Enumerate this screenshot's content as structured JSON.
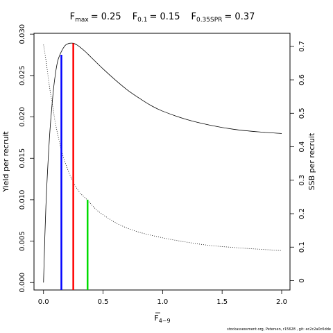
{
  "chart_data": {
    "type": "line",
    "title_parts": [
      {
        "label": "F",
        "sub": "max",
        "value": "= 0.25"
      },
      {
        "label": "F",
        "sub": "0.1",
        "value": "= 0.15"
      },
      {
        "label": "F",
        "sub": "0.35SPR",
        "value": "= 0.37"
      }
    ],
    "xlabel": "F",
    "xlabel_sub": "4−9",
    "ylabel_left": "Yield per recruit",
    "ylabel_right": "SSB per recruit",
    "xlim": [
      -0.08,
      2.07
    ],
    "ylim_left": [
      -0.0009,
      0.0301
    ],
    "ylim_right": [
      -0.028,
      0.739
    ],
    "x_ticks": [
      {
        "value": 0,
        "label": "0.0"
      },
      {
        "value": 0.5,
        "label": "0.5"
      },
      {
        "value": 1.0,
        "label": "1.0"
      },
      {
        "value": 1.5,
        "label": "1.5"
      },
      {
        "value": 2.0,
        "label": "2.0"
      }
    ],
    "y_left_ticks": [
      {
        "value": 0,
        "label": "0.000"
      },
      {
        "value": 0.005,
        "label": "0.005"
      },
      {
        "value": 0.01,
        "label": "0.010"
      },
      {
        "value": 0.015,
        "label": "0.015"
      },
      {
        "value": 0.02,
        "label": "0.020"
      },
      {
        "value": 0.025,
        "label": "0.025"
      },
      {
        "value": 0.03,
        "label": "0.030"
      }
    ],
    "y_right_ticks": [
      {
        "value": 0,
        "label": "0"
      },
      {
        "value": 0.1,
        "label": "0.1"
      },
      {
        "value": 0.2,
        "label": "0.2"
      },
      {
        "value": 0.3,
        "label": "0.3"
      },
      {
        "value": 0.4,
        "label": "0.4"
      },
      {
        "value": 0.5,
        "label": "0.5"
      },
      {
        "value": 0.6,
        "label": "0.6"
      },
      {
        "value": 0.7,
        "label": "0.7"
      }
    ],
    "series": [
      {
        "style": "solid",
        "axis": "left",
        "x": [
          0,
          0.02,
          0.05,
          0.08,
          0.1,
          0.12,
          0.15,
          0.18,
          0.2,
          0.22,
          0.25,
          0.28,
          0.3,
          0.35,
          0.4,
          0.5,
          0.6,
          0.7,
          0.8,
          0.9,
          1.0,
          1.2,
          1.4,
          1.6,
          1.8,
          2.0
        ],
        "values": [
          0,
          0.0092,
          0.0175,
          0.0228,
          0.0252,
          0.0268,
          0.0279,
          0.0286,
          0.0288,
          0.0289,
          0.0289,
          0.0287,
          0.0285,
          0.0279,
          0.0272,
          0.0258,
          0.0245,
          0.0233,
          0.0223,
          0.0214,
          0.0207,
          0.0197,
          0.019,
          0.0185,
          0.0182,
          0.018
        ]
      },
      {
        "style": "dotted",
        "axis": "right",
        "x": [
          0,
          0.02,
          0.05,
          0.08,
          0.1,
          0.15,
          0.2,
          0.25,
          0.3,
          0.37,
          0.45,
          0.55,
          0.65,
          0.8,
          1.0,
          1.2,
          1.4,
          1.6,
          1.8,
          2.0
        ],
        "values": [
          0.705,
          0.66,
          0.58,
          0.515,
          0.47,
          0.39,
          0.335,
          0.295,
          0.265,
          0.24,
          0.21,
          0.185,
          0.165,
          0.145,
          0.128,
          0.115,
          0.105,
          0.099,
          0.094,
          0.09
        ]
      }
    ],
    "reference_lines": [
      {
        "name": "F0.1",
        "x": 0.15,
        "y_top": 0.0275,
        "axis": "left",
        "color": "#0000ff"
      },
      {
        "name": "Fmax",
        "x": 0.25,
        "y_top": 0.0289,
        "axis": "left",
        "color": "#ff0000"
      },
      {
        "name": "F0.35SPR",
        "x": 0.37,
        "y_top": 0.01,
        "axis": "left",
        "color": "#00dd00"
      }
    ],
    "grid": false
  },
  "footer": "stockassessment.org, Petersen, r15628 , git: ec2c2a0c6dde"
}
